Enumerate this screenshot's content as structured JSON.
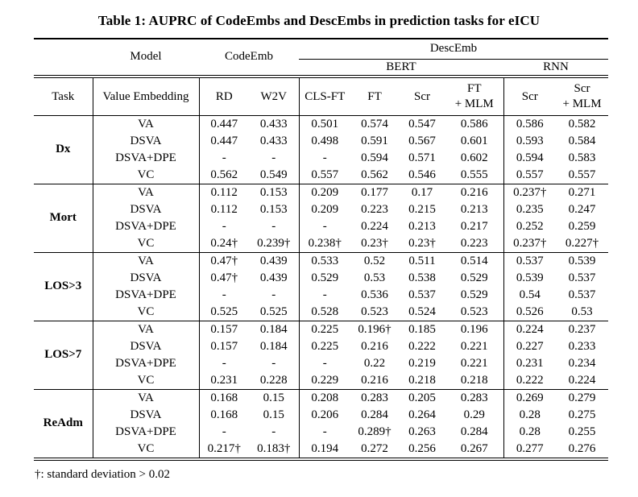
{
  "page": {
    "title": "Table 1: AUPRC of CodeEmbs and DescEmbs in prediction tasks for eICU",
    "footnote": "†: standard deviation > 0.02"
  },
  "table": {
    "top_headers": {
      "model": "Model",
      "codeemb": "CodeEmb",
      "descemb": "DescEmb",
      "bert": "BERT",
      "rnn": "RNN"
    },
    "column_headers": {
      "task": "Task",
      "value_embedding": "Value Embedding",
      "codeemb_cols": [
        "RD",
        "W2V"
      ],
      "bert_cols": [
        "CLS-FT",
        "FT",
        "Scr",
        "FT\n+ MLM"
      ],
      "rnn_cols": [
        "Scr",
        "Scr\n+ MLM"
      ]
    },
    "groups": [
      {
        "task": "Dx",
        "rows": [
          {
            "value_embedding": "VA",
            "values": [
              "0.447",
              "0.433",
              "0.501",
              "0.574",
              "0.547",
              "0.586",
              "0.586",
              "0.582"
            ]
          },
          {
            "value_embedding": "DSVA",
            "values": [
              "0.447",
              "0.433",
              "0.498",
              "0.591",
              "0.567",
              "0.601",
              "0.593",
              "0.584"
            ]
          },
          {
            "value_embedding": "DSVA+DPE",
            "values": [
              "-",
              "-",
              "-",
              "0.594",
              "0.571",
              "0.602",
              "0.594",
              "0.583"
            ]
          },
          {
            "value_embedding": "VC",
            "values": [
              "0.562",
              "0.549",
              "0.557",
              "0.562",
              "0.546",
              "0.555",
              "0.557",
              "0.557"
            ]
          }
        ]
      },
      {
        "task": "Mort",
        "rows": [
          {
            "value_embedding": "VA",
            "values": [
              "0.112",
              "0.153",
              "0.209",
              "0.177",
              "0.17",
              "0.216",
              "0.237†",
              "0.271"
            ]
          },
          {
            "value_embedding": "DSVA",
            "values": [
              "0.112",
              "0.153",
              "0.209",
              "0.223",
              "0.215",
              "0.213",
              "0.235",
              "0.247"
            ]
          },
          {
            "value_embedding": "DSVA+DPE",
            "values": [
              "-",
              "-",
              "-",
              "0.224",
              "0.213",
              "0.217",
              "0.252",
              "0.259"
            ]
          },
          {
            "value_embedding": "VC",
            "values": [
              "0.24†",
              "0.239†",
              "0.238†",
              "0.23†",
              "0.23†",
              "0.223",
              "0.237†",
              "0.227†"
            ]
          }
        ]
      },
      {
        "task": "LOS>3",
        "rows": [
          {
            "value_embedding": "VA",
            "values": [
              "0.47†",
              "0.439",
              "0.533",
              "0.52",
              "0.511",
              "0.514",
              "0.537",
              "0.539"
            ]
          },
          {
            "value_embedding": "DSVA",
            "values": [
              "0.47†",
              "0.439",
              "0.529",
              "0.53",
              "0.538",
              "0.529",
              "0.539",
              "0.537"
            ]
          },
          {
            "value_embedding": "DSVA+DPE",
            "values": [
              "-",
              "-",
              "-",
              "0.536",
              "0.537",
              "0.529",
              "0.54",
              "0.537"
            ]
          },
          {
            "value_embedding": "VC",
            "values": [
              "0.525",
              "0.525",
              "0.528",
              "0.523",
              "0.524",
              "0.523",
              "0.526",
              "0.53"
            ]
          }
        ]
      },
      {
        "task": "LOS>7",
        "rows": [
          {
            "value_embedding": "VA",
            "values": [
              "0.157",
              "0.184",
              "0.225",
              "0.196†",
              "0.185",
              "0.196",
              "0.224",
              "0.237"
            ]
          },
          {
            "value_embedding": "DSVA",
            "values": [
              "0.157",
              "0.184",
              "0.225",
              "0.216",
              "0.222",
              "0.221",
              "0.227",
              "0.233"
            ]
          },
          {
            "value_embedding": "DSVA+DPE",
            "values": [
              "-",
              "-",
              "-",
              "0.22",
              "0.219",
              "0.221",
              "0.231",
              "0.234"
            ]
          },
          {
            "value_embedding": "VC",
            "values": [
              "0.231",
              "0.228",
              "0.229",
              "0.216",
              "0.218",
              "0.218",
              "0.222",
              "0.224"
            ]
          }
        ]
      },
      {
        "task": "ReAdm",
        "rows": [
          {
            "value_embedding": "VA",
            "values": [
              "0.168",
              "0.15",
              "0.208",
              "0.283",
              "0.205",
              "0.283",
              "0.269",
              "0.279"
            ]
          },
          {
            "value_embedding": "DSVA",
            "values": [
              "0.168",
              "0.15",
              "0.206",
              "0.284",
              "0.264",
              "0.29",
              "0.28",
              "0.275"
            ]
          },
          {
            "value_embedding": "DSVA+DPE",
            "values": [
              "-",
              "-",
              "-",
              "0.289†",
              "0.263",
              "0.284",
              "0.28",
              "0.255"
            ]
          },
          {
            "value_embedding": "VC",
            "values": [
              "0.217†",
              "0.183†",
              "0.194",
              "0.272",
              "0.256",
              "0.267",
              "0.277",
              "0.276"
            ]
          }
        ]
      }
    ]
  }
}
